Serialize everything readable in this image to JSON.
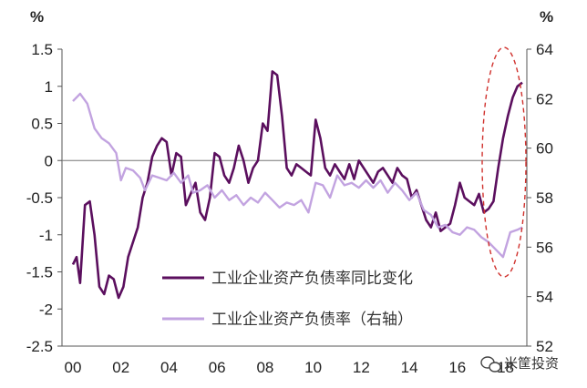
{
  "chart_data": {
    "type": "line",
    "title": "",
    "xlabel": "",
    "left_unit": "%",
    "right_unit": "%",
    "x_ticks": [
      "00",
      "02",
      "04",
      "06",
      "08",
      "10",
      "12",
      "14",
      "16",
      "18"
    ],
    "x_range": [
      2000,
      2018.7
    ],
    "ylim_left": [
      -2.5,
      1.5
    ],
    "yticks_left": [
      "1.5",
      "1",
      "0.5",
      "0",
      "-0.5",
      "-1",
      "-1.5",
      "-2",
      "-2.5"
    ],
    "ylim_right": [
      52,
      64
    ],
    "yticks_right": [
      "64",
      "62",
      "60",
      "58",
      "56",
      "54",
      "52"
    ],
    "grid": false,
    "zero_line": true,
    "legend_position": "bottom-center",
    "series": [
      {
        "name": "工业企业资产负债率同比变化",
        "axis": "left",
        "color": "#5b0f5e",
        "x": [
          2000.0,
          2000.15,
          2000.3,
          2000.5,
          2000.7,
          2000.9,
          2001.1,
          2001.3,
          2001.5,
          2001.7,
          2001.9,
          2002.1,
          2002.3,
          2002.5,
          2002.7,
          2002.9,
          2003.1,
          2003.3,
          2003.5,
          2003.7,
          2003.9,
          2004.1,
          2004.3,
          2004.5,
          2004.7,
          2004.9,
          2005.1,
          2005.3,
          2005.5,
          2005.7,
          2005.9,
          2006.1,
          2006.3,
          2006.5,
          2006.7,
          2006.9,
          2007.1,
          2007.3,
          2007.5,
          2007.7,
          2007.9,
          2008.1,
          2008.3,
          2008.5,
          2008.7,
          2008.9,
          2009.1,
          2009.3,
          2009.5,
          2009.7,
          2009.9,
          2010.1,
          2010.3,
          2010.5,
          2010.7,
          2010.9,
          2011.1,
          2011.3,
          2011.5,
          2011.7,
          2011.9,
          2012.1,
          2012.3,
          2012.5,
          2012.7,
          2012.9,
          2013.1,
          2013.3,
          2013.5,
          2013.7,
          2013.9,
          2014.1,
          2014.3,
          2014.5,
          2014.7,
          2014.9,
          2015.1,
          2015.3,
          2015.5,
          2015.7,
          2015.9,
          2016.1,
          2016.3,
          2016.5,
          2016.7,
          2016.9,
          2017.1,
          2017.3,
          2017.5,
          2017.7,
          2017.9,
          2018.1,
          2018.3,
          2018.5,
          2018.7
        ],
        "values": [
          -1.4,
          -1.3,
          -1.65,
          -0.6,
          -0.55,
          -1.0,
          -1.7,
          -1.8,
          -1.55,
          -1.6,
          -1.85,
          -1.7,
          -1.3,
          -1.1,
          -0.9,
          -0.5,
          -0.3,
          0.05,
          0.2,
          0.3,
          0.25,
          -0.2,
          0.1,
          0.05,
          -0.6,
          -0.45,
          -0.3,
          -0.7,
          -0.8,
          -0.5,
          0.1,
          0.05,
          -0.2,
          -0.3,
          -0.1,
          0.2,
          0.0,
          -0.3,
          -0.1,
          0.0,
          0.5,
          0.4,
          1.2,
          1.15,
          0.6,
          -0.1,
          -0.2,
          -0.05,
          -0.1,
          -0.15,
          -0.2,
          0.55,
          0.3,
          -0.1,
          -0.2,
          -0.05,
          -0.15,
          -0.25,
          -0.05,
          -0.25,
          0.0,
          -0.1,
          -0.2,
          -0.3,
          -0.15,
          -0.1,
          -0.2,
          -0.3,
          -0.1,
          -0.2,
          -0.25,
          -0.5,
          -0.4,
          -0.6,
          -0.8,
          -0.9,
          -0.7,
          -0.95,
          -0.9,
          -0.85,
          -0.6,
          -0.3,
          -0.5,
          -0.55,
          -0.6,
          -0.45,
          -0.7,
          -0.65,
          -0.55,
          -0.1,
          0.3,
          0.6,
          0.85,
          1.0,
          1.05
        ]
      },
      {
        "name": "工业企业资产负债率（右轴）",
        "axis": "right",
        "color": "#c2a3e0",
        "x": [
          2000.0,
          2000.3,
          2000.6,
          2000.9,
          2001.2,
          2001.5,
          2001.8,
          2002.0,
          2002.2,
          2002.5,
          2002.8,
          2003.0,
          2003.3,
          2003.6,
          2003.9,
          2004.2,
          2004.5,
          2004.8,
          2005.0,
          2005.3,
          2005.6,
          2005.9,
          2006.2,
          2006.5,
          2006.8,
          2007.1,
          2007.4,
          2007.7,
          2008.0,
          2008.3,
          2008.6,
          2008.9,
          2009.2,
          2009.5,
          2009.8,
          2010.1,
          2010.4,
          2010.7,
          2011.0,
          2011.3,
          2011.6,
          2011.9,
          2012.2,
          2012.5,
          2012.8,
          2013.1,
          2013.4,
          2013.7,
          2014.0,
          2014.3,
          2014.6,
          2014.9,
          2015.2,
          2015.5,
          2015.8,
          2016.1,
          2016.4,
          2016.7,
          2017.0,
          2017.3,
          2017.6,
          2017.9,
          2018.2,
          2018.5,
          2018.7
        ],
        "values": [
          61.9,
          62.2,
          61.8,
          60.8,
          60.4,
          60.2,
          59.8,
          58.7,
          59.2,
          59.1,
          58.8,
          58.3,
          58.9,
          58.8,
          58.7,
          59.0,
          58.6,
          58.9,
          58.2,
          58.3,
          58.5,
          58.0,
          58.3,
          57.9,
          58.1,
          57.7,
          58.0,
          57.8,
          58.2,
          57.9,
          57.6,
          57.8,
          57.7,
          57.9,
          57.4,
          58.6,
          58.5,
          58.0,
          58.9,
          58.5,
          58.6,
          58.4,
          58.7,
          58.4,
          58.7,
          58.2,
          58.6,
          58.3,
          57.9,
          58.2,
          57.5,
          57.3,
          56.8,
          56.9,
          56.6,
          56.5,
          56.8,
          56.7,
          56.4,
          56.2,
          55.9,
          55.6,
          56.6,
          56.7,
          56.8
        ]
      }
    ],
    "annotation": "dashed-ellipse-highlight-2018"
  },
  "watermark": {
    "icon": "wechat-icon",
    "text": "米筐投资"
  }
}
